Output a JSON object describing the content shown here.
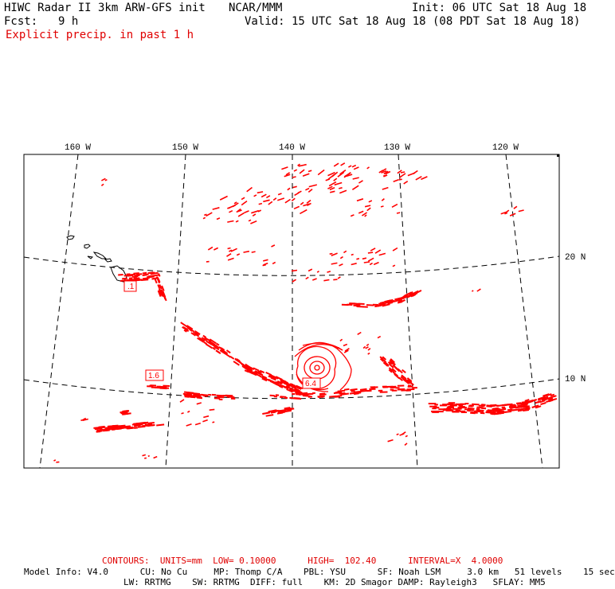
{
  "header": {
    "title": "HIWC Radar II 3km ARW-GFS init",
    "org": "NCAR/MMM",
    "init": "Init: 06 UTC Sat 18 Aug 18",
    "fcst_label": "Fcst:",
    "fcst_value": "9 h",
    "valid": "Valid: 15 UTC Sat 18 Aug 18 (08 PDT Sat 18 Aug 18)",
    "field": "Explicit precip. in past 1 h"
  },
  "map": {
    "lon_labels": [
      "160 W",
      "150 W",
      "140 W",
      "130 W",
      "120 W"
    ],
    "lat_labels": [
      "20 N",
      "10 N"
    ],
    "precip_color": "#ff0000",
    "value_labels": [
      ".1",
      "1.6",
      "6.4"
    ]
  },
  "footer": {
    "contours": "CONTOURS:  UNITS=mm  LOW= 0.10000      HIGH=  102.40      INTERVAL=X  4.0000",
    "model_line1": "Model Info: V4.0      CU: No Cu     MP: Thomp C/A    PBL: YSU      SF: Noah LSM     3.0 km   51 levels    15 sec",
    "model_line2": "LW: RRTMG    SW: RRTMG  DIFF: full    KM: 2D Smagor DAMP: Rayleigh3   SFLAY: MM5"
  }
}
